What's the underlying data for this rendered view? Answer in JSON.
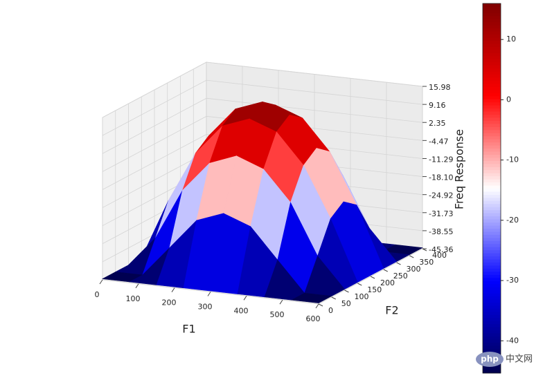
{
  "chart_data": {
    "type": "surface3d",
    "x_label": "F1",
    "y_label": "F2",
    "z_label": "Freq Response",
    "x": [
      0,
      75,
      150,
      225,
      300,
      375,
      450,
      525,
      600
    ],
    "y": [
      0,
      50,
      100,
      150,
      200,
      250,
      300,
      350,
      400
    ],
    "z": [
      [
        -45,
        -45,
        -45,
        -45,
        -45,
        -45,
        -45,
        -45,
        -45
      ],
      [
        -45,
        -45,
        -33.6,
        -22.1,
        -18.3,
        -22.1,
        -33.6,
        -45,
        -45
      ],
      [
        -45,
        -33.6,
        -14.5,
        -3.1,
        0.8,
        -3.1,
        -14.5,
        -33.6,
        -45
      ],
      [
        -45,
        -22.1,
        -3.1,
        8.4,
        12.2,
        8.4,
        -3.1,
        -22.1,
        -45
      ],
      [
        -45,
        -18.3,
        0.8,
        12.2,
        16,
        12.2,
        0.8,
        -18.3,
        -45
      ],
      [
        -45,
        -22.1,
        -3.1,
        8.4,
        12.2,
        8.4,
        -3.1,
        -22.1,
        -45
      ],
      [
        -45,
        -33.6,
        -14.5,
        -3.1,
        0.8,
        -3.1,
        -14.5,
        -33.6,
        -45
      ],
      [
        -45,
        -45,
        -33.6,
        -22.1,
        -18.3,
        -22.1,
        -33.6,
        -45,
        -45
      ],
      [
        -45,
        -45,
        -45,
        -45,
        -45,
        -45,
        -45,
        -45,
        -45
      ]
    ],
    "xlim": [
      0,
      600
    ],
    "xticks": [
      0,
      100,
      200,
      300,
      400,
      500,
      600
    ],
    "ylim": [
      0,
      400
    ],
    "yticks": [
      0,
      50,
      100,
      150,
      200,
      250,
      300,
      350,
      400
    ],
    "zlim": [
      -45.36,
      15.98
    ],
    "zticks": [
      15.98,
      9.16,
      2.35,
      -4.47,
      -11.29,
      {
        "value": -18.1,
        "label": "-18.10"
      },
      -24.92,
      -31.73,
      -38.55,
      -45.36
    ],
    "colormap": "seismic",
    "colorbar_ticks": [
      10,
      0,
      -10,
      -20,
      -30,
      -40
    ],
    "grid": true
  },
  "watermark": {
    "logo": "php",
    "text": "中文网"
  }
}
